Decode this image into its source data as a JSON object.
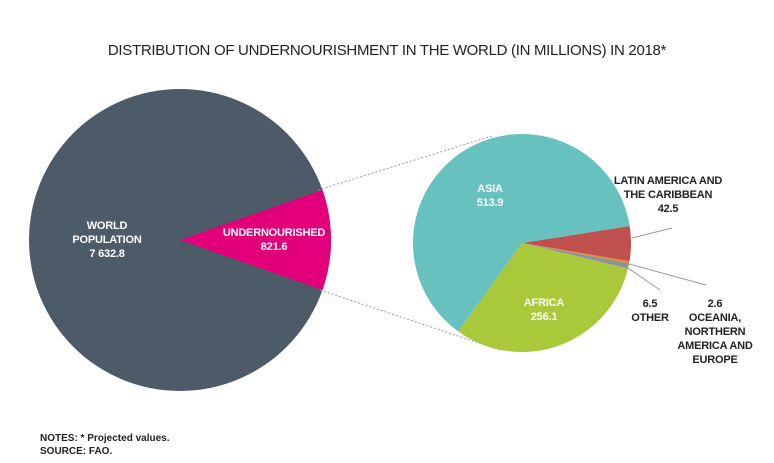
{
  "chart_data": [
    {
      "type": "pie",
      "title": "DISTRIBUTION OF UNDERNOURISHMENT IN THE WORLD (IN MILLIONS) IN 2018*",
      "categories": [
        "WORLD POPULATION",
        "UNDERNOURISHED"
      ],
      "values": [
        7632.8,
        821.6
      ],
      "value_labels": [
        "7 632.8",
        "821.6"
      ],
      "colors": [
        "#4d5b69",
        "#e2007a"
      ],
      "notes": [
        "NOTES: * Projected values.",
        "SOURCE: FAO."
      ]
    },
    {
      "type": "pie",
      "categories": [
        "LATIN AMERICA AND THE CARIBBEAN",
        "OCEANIA, NORTHERN AMERICA AND EUROPE",
        "OTHER",
        "AFRICA",
        "ASIA"
      ],
      "values": [
        42.5,
        2.6,
        6.5,
        256.1,
        513.9
      ],
      "colors": [
        "#c0504d",
        "#e8892b",
        "#8c939b",
        "#a9c93b",
        "#66c1bf"
      ]
    }
  ]
}
